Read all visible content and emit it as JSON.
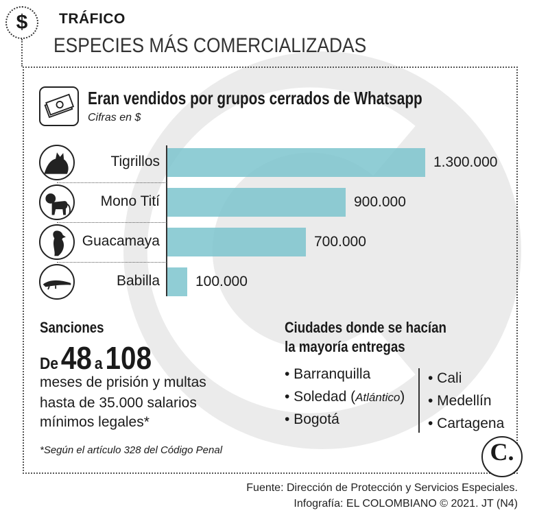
{
  "header": {
    "section_label": "TRÁFICO",
    "title": "ESPECIES MÁS COMERCIALIZADAS"
  },
  "colors": {
    "bar": "#7dc4ce",
    "text": "#1a1a1a"
  },
  "chart_data": {
    "type": "bar",
    "orientation": "horizontal",
    "title": "Eran vendidos por grupos cerrados de Whatsapp",
    "subtitle": "Cifras en $",
    "categories": [
      "Tigrillos",
      "Mono Tití",
      "Guacamaya",
      "Babilla"
    ],
    "values": [
      1300000,
      900000,
      700000,
      100000
    ],
    "value_labels": [
      "1.300.000",
      "900.000",
      "700.000",
      "100.000"
    ],
    "icons": [
      "ocelot-icon",
      "monkey-icon",
      "macaw-icon",
      "caiman-icon"
    ],
    "xlim": [
      0,
      1300000
    ],
    "grid": false,
    "legend": "none"
  },
  "sanctions": {
    "heading": "Sanciones",
    "prefix": "De",
    "min": "48",
    "connector": "a",
    "max": "108",
    "lines": [
      "meses de prisión y multas",
      "hasta de 35.000 salarios",
      "mínimos legales*"
    ],
    "footnote": "*Según el artículo 328 del Código Penal"
  },
  "cities": {
    "heading_lines": [
      "Ciudades donde se hacían",
      "la mayoría entregas"
    ],
    "left": [
      {
        "name": "• Barranquilla",
        "note": ""
      },
      {
        "name": "• Soledad (",
        "note": "Atlántico",
        "after": ")"
      },
      {
        "name": "• Bogotá",
        "note": ""
      }
    ],
    "right": [
      "• Cali",
      "• Medellín",
      "• Cartagena"
    ]
  },
  "logo": "C.",
  "footer": {
    "source": "Fuente: Dirección de Protección y Servicios Especiales.",
    "credit": "Infografía: EL COLOMBIANO © 2021. JT (N4)"
  }
}
